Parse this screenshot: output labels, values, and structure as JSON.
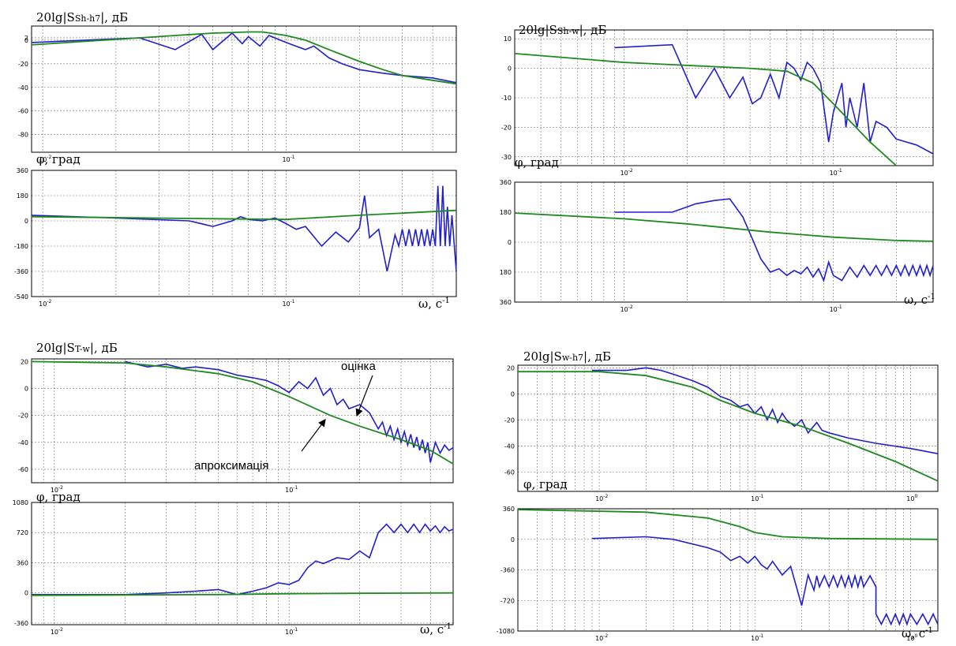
{
  "colors": {
    "estimate": "#1f1fd0",
    "approximation": "#1e8a1e"
  },
  "chart_data": [
    {
      "type": "line",
      "title": "20lg|S",
      "title_sub": "Sh-h7",
      "title_end": "|, дБ",
      "log_x": true,
      "xlim": [
        0.009,
        0.5
      ],
      "ylim": [
        -95,
        12
      ],
      "yticks": [
        2,
        0,
        -20,
        -40,
        -60,
        -80
      ],
      "xticks": [
        {
          "v": 0.01,
          "b": "10",
          "e": "-2"
        },
        {
          "v": 0.1,
          "b": "10",
          "e": "-1"
        }
      ],
      "xlabel": "",
      "xlabel_sup": "",
      "series": [
        {
          "kind": "estimate",
          "x": [
            0.009,
            0.015,
            0.025,
            0.035,
            0.045,
            0.05,
            0.06,
            0.066,
            0.07,
            0.078,
            0.085,
            0.1,
            0.12,
            0.13,
            0.15,
            0.17,
            0.2,
            0.25,
            0.3,
            0.4,
            0.5
          ],
          "y": [
            -2,
            0,
            2,
            -8,
            5,
            -8,
            6,
            -3,
            3,
            -5,
            4,
            -2,
            -8,
            -5,
            -15,
            -20,
            -25,
            -28,
            -30,
            -32,
            -36
          ]
        },
        {
          "kind": "approximation",
          "x": [
            0.009,
            0.015,
            0.025,
            0.035,
            0.05,
            0.07,
            0.08,
            0.1,
            0.12,
            0.15,
            0.2,
            0.25,
            0.3,
            0.4,
            0.5
          ],
          "y": [
            -4,
            -1,
            2,
            4,
            6,
            7,
            7,
            4,
            0,
            -8,
            -18,
            -25,
            -30,
            -34,
            -37
          ]
        }
      ]
    },
    {
      "type": "line",
      "title": "φ, град",
      "log_x": true,
      "xlim": [
        0.009,
        0.5
      ],
      "ylim": [
        -540,
        360
      ],
      "yticks": [
        360,
        180,
        0,
        -180,
        -360,
        -540
      ],
      "xticks": [
        {
          "v": 0.01,
          "b": "10",
          "e": "-2"
        },
        {
          "v": 0.1,
          "b": "10",
          "e": "-1"
        }
      ],
      "xlabel": "ω, с",
      "xlabel_sup": "-1",
      "series": [
        {
          "kind": "estimate",
          "x": [
            0.009,
            0.02,
            0.04,
            0.05,
            0.06,
            0.065,
            0.07,
            0.08,
            0.09,
            0.1,
            0.11,
            0.12,
            0.14,
            0.16,
            0.18,
            0.2,
            0.21,
            0.22,
            0.24,
            0.26,
            0.28,
            0.29,
            0.3,
            0.31,
            0.32,
            0.33,
            0.34,
            0.35,
            0.36,
            0.37,
            0.38,
            0.39,
            0.4,
            0.41,
            0.42,
            0.43,
            0.44,
            0.45,
            0.46,
            0.47,
            0.48,
            0.5
          ],
          "y": [
            40,
            20,
            0,
            -40,
            0,
            30,
            10,
            0,
            20,
            -20,
            -60,
            -40,
            -180,
            -80,
            -150,
            -50,
            180,
            -120,
            -60,
            -360,
            -100,
            -180,
            -60,
            -180,
            -60,
            -180,
            -60,
            -180,
            -60,
            -180,
            -60,
            -180,
            -60,
            -180,
            250,
            -180,
            250,
            -180,
            100,
            -180,
            40,
            -360
          ]
        },
        {
          "kind": "approximation",
          "x": [
            0.009,
            0.05,
            0.1,
            0.2,
            0.3,
            0.5
          ],
          "y": [
            30,
            15,
            10,
            40,
            55,
            75
          ]
        }
      ]
    },
    {
      "type": "line",
      "title": "20lg|S",
      "title_sub": "Sh-w",
      "title_end": "|, дБ",
      "log_x": true,
      "xlim": [
        0.003,
        0.3
      ],
      "ylim": [
        -33,
        13
      ],
      "yticks": [
        10,
        0,
        -10,
        -20,
        -30
      ],
      "xticks": [
        {
          "v": 0.01,
          "b": "10",
          "e": "-2"
        },
        {
          "v": 0.1,
          "b": "10",
          "e": "-1"
        }
      ],
      "xlabel": "",
      "xlabel_sup": "",
      "series": [
        {
          "kind": "estimate",
          "x": [
            0.009,
            0.017,
            0.022,
            0.027,
            0.032,
            0.037,
            0.041,
            0.045,
            0.05,
            0.055,
            0.06,
            0.065,
            0.07,
            0.075,
            0.08,
            0.087,
            0.095,
            0.1,
            0.11,
            0.115,
            0.12,
            0.125,
            0.13,
            0.14,
            0.15,
            0.16,
            0.18,
            0.2,
            0.25,
            0.3
          ],
          "y": [
            7,
            8,
            -10,
            0,
            -10,
            -3,
            -12,
            -10,
            -2,
            -10,
            2,
            0,
            -4,
            2,
            0,
            -5,
            -25,
            -15,
            -5,
            -20,
            -10,
            -15,
            -20,
            -5,
            -25,
            -18,
            -20,
            -24,
            -26,
            -29
          ]
        },
        {
          "kind": "approximation",
          "x": [
            0.003,
            0.01,
            0.02,
            0.04,
            0.06,
            0.08,
            0.1,
            0.15,
            0.2
          ],
          "y": [
            5,
            2,
            1,
            0,
            -1,
            -5,
            -12,
            -25,
            -33
          ]
        }
      ]
    },
    {
      "type": "line",
      "title": "φ, град",
      "log_x": true,
      "xlim": [
        0.003,
        0.3
      ],
      "ylim": [
        -360,
        360
      ],
      "yticks": [
        360,
        180,
        0,
        -180,
        -360
      ],
      "ytick_labels": [
        "360",
        "180",
        "0",
        "180",
        "360"
      ],
      "xticks": [
        {
          "v": 0.01,
          "b": "10",
          "e": "-2"
        },
        {
          "v": 0.1,
          "b": "10",
          "e": "-1"
        }
      ],
      "xlabel": "ω, с",
      "xlabel_sup": "-1",
      "series": [
        {
          "kind": "estimate",
          "x": [
            0.009,
            0.017,
            0.022,
            0.027,
            0.032,
            0.037,
            0.041,
            0.045,
            0.05,
            0.055,
            0.06,
            0.065,
            0.07,
            0.075,
            0.08,
            0.085,
            0.09,
            0.095,
            0.1,
            0.11,
            0.12,
            0.13,
            0.14,
            0.15,
            0.16,
            0.17,
            0.18,
            0.19,
            0.2,
            0.21,
            0.22,
            0.23,
            0.24,
            0.25,
            0.26,
            0.27,
            0.28,
            0.29,
            0.3
          ],
          "y": [
            180,
            180,
            230,
            250,
            260,
            150,
            20,
            -100,
            -180,
            -160,
            -200,
            -170,
            -190,
            -150,
            -210,
            -160,
            -230,
            -120,
            -200,
            -230,
            -150,
            -210,
            -140,
            -200,
            -140,
            -200,
            -140,
            -200,
            -140,
            -200,
            -140,
            -200,
            -140,
            -200,
            -140,
            -200,
            -140,
            -200,
            -140
          ]
        },
        {
          "kind": "approximation",
          "x": [
            0.003,
            0.01,
            0.02,
            0.05,
            0.1,
            0.2,
            0.3
          ],
          "y": [
            175,
            140,
            110,
            60,
            30,
            10,
            5
          ]
        }
      ]
    },
    {
      "type": "line",
      "title": "20lg|S",
      "title_sub": "T-w",
      "title_end": "|, дБ",
      "log_x": true,
      "xlim": [
        0.008,
        0.5
      ],
      "ylim": [
        -70,
        22
      ],
      "yticks": [
        20,
        0,
        -20,
        -40,
        -60
      ],
      "xticks": [
        {
          "v": 0.01,
          "b": "10",
          "e": "-2"
        },
        {
          "v": 0.1,
          "b": "10",
          "e": "-1"
        }
      ],
      "xlabel": "",
      "xlabel_sup": "",
      "series": [
        {
          "kind": "estimate",
          "x": [
            0.02,
            0.025,
            0.03,
            0.035,
            0.04,
            0.05,
            0.06,
            0.07,
            0.08,
            0.09,
            0.1,
            0.11,
            0.12,
            0.13,
            0.14,
            0.15,
            0.16,
            0.17,
            0.18,
            0.2,
            0.22,
            0.24,
            0.25,
            0.26,
            0.27,
            0.28,
            0.29,
            0.3,
            0.31,
            0.32,
            0.33,
            0.34,
            0.35,
            0.36,
            0.37,
            0.38,
            0.39,
            0.4,
            0.42,
            0.44,
            0.46,
            0.48,
            0.5
          ],
          "y": [
            20,
            16,
            18,
            15,
            16,
            14,
            10,
            8,
            6,
            2,
            -3,
            5,
            0,
            8,
            -5,
            0,
            -12,
            -8,
            -15,
            -12,
            -18,
            -30,
            -25,
            -35,
            -28,
            -38,
            -30,
            -40,
            -32,
            -42,
            -34,
            -44,
            -36,
            -46,
            -38,
            -48,
            -40,
            -55,
            -40,
            -48,
            -42,
            -46,
            -44
          ]
        },
        {
          "kind": "approximation",
          "x": [
            0.008,
            0.02,
            0.03,
            0.05,
            0.07,
            0.1,
            0.15,
            0.2,
            0.3,
            0.4,
            0.5
          ],
          "y": [
            20,
            19,
            16,
            11,
            5,
            -6,
            -20,
            -28,
            -38,
            -46,
            -56
          ]
        }
      ]
    },
    {
      "type": "line",
      "title": "φ, град",
      "log_x": true,
      "xlim": [
        0.008,
        0.5
      ],
      "ylim": [
        -380,
        1080
      ],
      "yticks": [
        1080,
        720,
        360,
        0,
        -360
      ],
      "xticks": [
        {
          "v": 0.01,
          "b": "10",
          "e": "-2"
        },
        {
          "v": 0.1,
          "b": "10",
          "e": "-1"
        }
      ],
      "xlabel": "ω, с",
      "xlabel_sup": "-1",
      "series": [
        {
          "kind": "estimate",
          "x": [
            0.008,
            0.02,
            0.03,
            0.04,
            0.05,
            0.06,
            0.07,
            0.08,
            0.09,
            0.1,
            0.11,
            0.12,
            0.13,
            0.14,
            0.16,
            0.18,
            0.2,
            0.22,
            0.24,
            0.26,
            0.28,
            0.3,
            0.32,
            0.34,
            0.36,
            0.38,
            0.4,
            0.42,
            0.44,
            0.46,
            0.48,
            0.5
          ],
          "y": [
            -20,
            -20,
            0,
            20,
            40,
            -20,
            20,
            60,
            120,
            100,
            150,
            300,
            380,
            350,
            420,
            400,
            500,
            420,
            720,
            820,
            720,
            820,
            720,
            820,
            720,
            820,
            740,
            800,
            720,
            790,
            740,
            760
          ]
        },
        {
          "kind": "approximation",
          "x": [
            0.008,
            0.05,
            0.1,
            0.2,
            0.5
          ],
          "y": [
            -30,
            -20,
            -10,
            -5,
            0
          ]
        }
      ]
    },
    {
      "type": "line",
      "title": "20lg|S",
      "title_sub": "w-h7",
      "title_end": "|, дБ",
      "log_x": true,
      "xlim": [
        0.003,
        1.5
      ],
      "ylim": [
        -75,
        22
      ],
      "yticks": [
        20,
        0,
        -20,
        -40,
        -60
      ],
      "xticks": [
        {
          "v": 0.01,
          "b": "10",
          "e": "-2"
        },
        {
          "v": 0.1,
          "b": "10",
          "e": "-1"
        },
        {
          "v": 1,
          "b": "10",
          "e": "0"
        }
      ],
      "xlabel": "",
      "xlabel_sup": "",
      "series": [
        {
          "kind": "estimate",
          "x": [
            0.009,
            0.015,
            0.02,
            0.025,
            0.03,
            0.04,
            0.05,
            0.06,
            0.07,
            0.08,
            0.09,
            0.1,
            0.11,
            0.12,
            0.13,
            0.14,
            0.15,
            0.16,
            0.18,
            0.2,
            0.22,
            0.25,
            0.27,
            0.3,
            0.4,
            0.6,
            1,
            1.5
          ],
          "y": [
            18,
            18,
            20,
            18,
            15,
            10,
            5,
            -2,
            -5,
            -10,
            -8,
            -15,
            -10,
            -20,
            -12,
            -22,
            -15,
            -20,
            -25,
            -20,
            -30,
            -22,
            -28,
            -30,
            -34,
            -38,
            -42,
            -46
          ]
        },
        {
          "kind": "approximation",
          "x": [
            0.003,
            0.01,
            0.02,
            0.04,
            0.06,
            0.1,
            0.2,
            0.4,
            0.8,
            1.5
          ],
          "y": [
            17,
            17,
            14,
            5,
            -5,
            -15,
            -25,
            -38,
            -52,
            -67
          ]
        }
      ]
    },
    {
      "type": "line",
      "title": "φ, град",
      "log_x": true,
      "xlim": [
        0.003,
        1.5
      ],
      "ylim": [
        -1080,
        360
      ],
      "yticks": [
        360,
        0,
        -360,
        -720,
        -1080
      ],
      "xticks": [
        {
          "v": 0.01,
          "b": "10",
          "e": "-2"
        },
        {
          "v": 0.1,
          "b": "10",
          "e": "-1"
        },
        {
          "v": 1,
          "b": "10",
          "e": "0"
        }
      ],
      "xlabel": "ω, с",
      "xlabel_sup": "-1",
      "series": [
        {
          "kind": "estimate",
          "x": [
            0.009,
            0.02,
            0.03,
            0.05,
            0.06,
            0.07,
            0.08,
            0.09,
            0.1,
            0.11,
            0.12,
            0.13,
            0.15,
            0.17,
            0.2,
            0.22,
            0.24,
            0.25,
            0.26,
            0.28,
            0.3,
            0.32,
            0.34,
            0.36,
            0.38,
            0.4,
            0.42,
            0.44,
            0.46,
            0.48,
            0.5,
            0.55,
            0.6,
            0.6,
            0.65,
            0.7,
            0.75,
            0.8,
            0.85,
            0.9,
            0.95,
            1,
            1.1,
            1.2,
            1.3,
            1.4,
            1.5
          ],
          "y": [
            10,
            30,
            0,
            -100,
            -150,
            -250,
            -200,
            -280,
            -200,
            -300,
            -350,
            -260,
            -420,
            -320,
            -780,
            -420,
            -600,
            -430,
            -560,
            -430,
            -560,
            -430,
            -560,
            -430,
            -560,
            -430,
            -560,
            -430,
            -560,
            -430,
            -560,
            -430,
            -560,
            -880,
            -1000,
            -880,
            -1000,
            -880,
            -1000,
            -880,
            -1000,
            -880,
            -1000,
            -880,
            -1000,
            -880,
            -1000
          ]
        },
        {
          "kind": "approximation",
          "x": [
            0.003,
            0.02,
            0.05,
            0.08,
            0.1,
            0.15,
            0.3,
            1.5
          ],
          "y": [
            350,
            320,
            250,
            150,
            80,
            30,
            10,
            0
          ]
        }
      ]
    }
  ],
  "annotations": [
    {
      "text": "оцінка"
    },
    {
      "text": "апроксимація"
    }
  ]
}
